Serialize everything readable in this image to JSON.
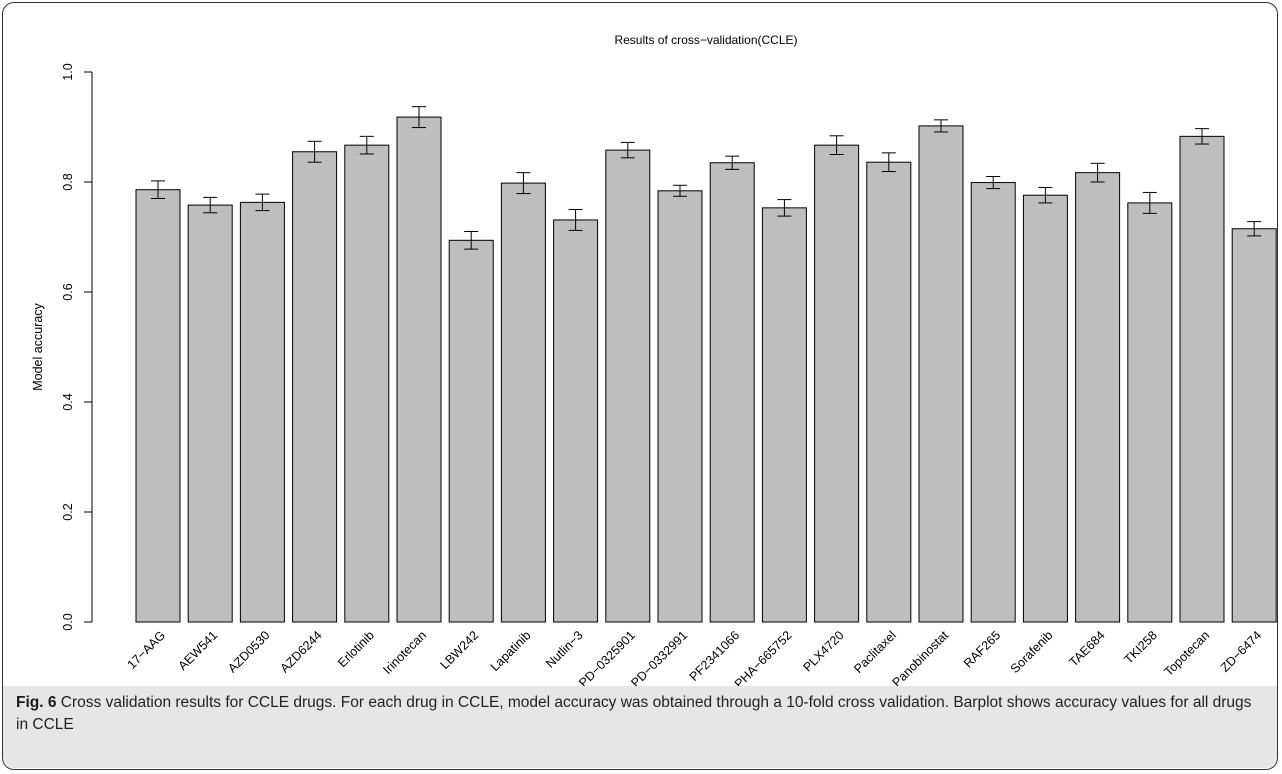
{
  "chart_data": {
    "type": "bar",
    "title": "Results of cross−validation(CCLE)",
    "xlabel": "",
    "ylabel": "Model accuracy",
    "ylim": [
      0,
      1.0
    ],
    "yticks": [
      "0.0",
      "0.2",
      "0.4",
      "0.6",
      "0.8",
      "1.0"
    ],
    "grid": false,
    "bar_color": "#bebebe",
    "categories": [
      "17−AAG",
      "AEW541",
      "AZD0530",
      "AZD6244",
      "Erlotinib",
      "Irinotecan",
      "LBW242",
      "Lapatinib",
      "Nutlin−3",
      "PD−0325901",
      "PD−0332991",
      "PF2341066",
      "PHA−665752",
      "PLX4720",
      "Paclitaxel",
      "Panobinostat",
      "RAF265",
      "Sorafenib",
      "TAE684",
      "TKI258",
      "Topotecan",
      "ZD−6474"
    ],
    "values": [
      0.786,
      0.758,
      0.763,
      0.855,
      0.867,
      0.918,
      0.694,
      0.798,
      0.731,
      0.858,
      0.784,
      0.835,
      0.753,
      0.867,
      0.836,
      0.902,
      0.799,
      0.776,
      0.817,
      0.762,
      0.883,
      0.715
    ],
    "errors": [
      0.016,
      0.014,
      0.015,
      0.019,
      0.016,
      0.019,
      0.016,
      0.019,
      0.019,
      0.014,
      0.01,
      0.012,
      0.015,
      0.017,
      0.017,
      0.011,
      0.011,
      0.014,
      0.017,
      0.019,
      0.014,
      0.013
    ]
  },
  "caption": {
    "label": "Fig. 6",
    "text": " Cross validation results for CCLE drugs. For each drug in CCLE, model accuracy was obtained through a 10-fold cross validation. Barplot shows accuracy values for all drugs in CCLE"
  }
}
